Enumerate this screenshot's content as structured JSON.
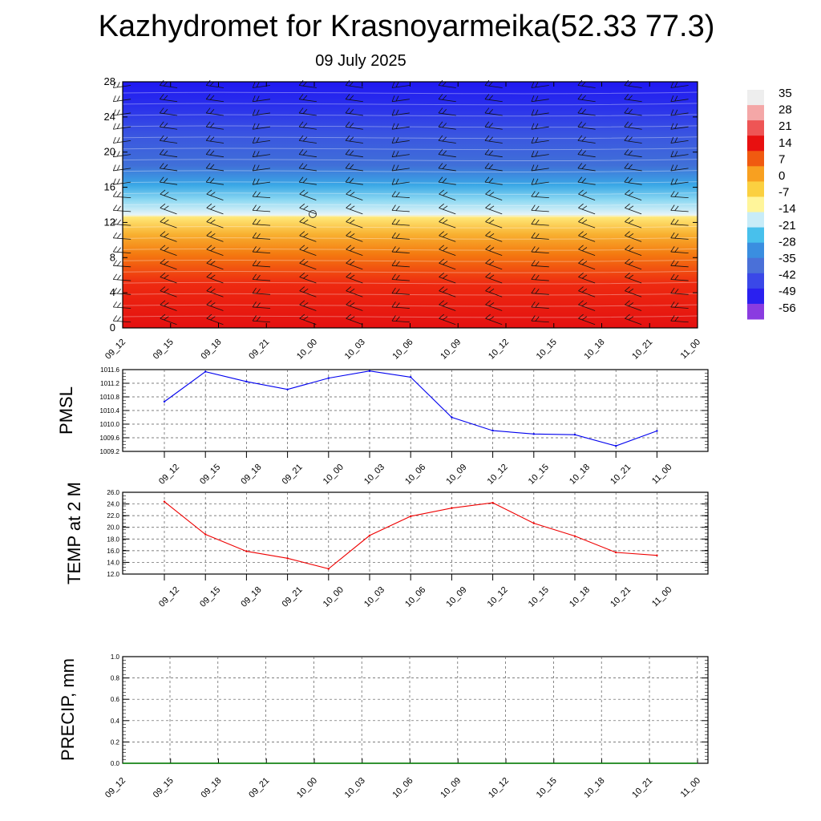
{
  "title": "Kazhydromet for Krasnoyarmeika(52.33 77.3)",
  "subtitle": "09 July 2025",
  "chart_data": [
    {
      "type": "heatmap",
      "name": "vertical-section",
      "x_labels": [
        "09_12",
        "09_15",
        "09_18",
        "09_21",
        "10_00",
        "10_03",
        "10_06",
        "10_09",
        "10_12",
        "10_15",
        "10_18",
        "10_21",
        "11_00"
      ],
      "y_ticks": [
        0,
        4,
        8,
        12,
        16,
        20,
        24,
        28
      ],
      "ylim": [
        0,
        28
      ],
      "colorbar_labels": [
        35,
        28,
        21,
        14,
        7,
        0,
        -7,
        -14,
        -21,
        -28,
        -35,
        -42,
        -49,
        -56
      ],
      "colorbar_colors": [
        "#eeeeee",
        "#f4a7a7",
        "#ee5555",
        "#e81010",
        "#f05a10",
        "#f8a020",
        "#fbd040",
        "#fff59a",
        "#c8ecf8",
        "#48c0ec",
        "#3a8ee0",
        "#4a70d8",
        "#3a48e8",
        "#2a20f0",
        "#8a3ce0"
      ],
      "wind_barbs": "shown",
      "grid": false
    },
    {
      "type": "line",
      "name": "pmsl",
      "ylabel": "PMSL",
      "x": [
        "09_12",
        "09_15",
        "09_18",
        "09_21",
        "10_00",
        "10_03",
        "10_06",
        "10_09",
        "10_12",
        "10_15",
        "10_18",
        "10_21",
        "11_00"
      ],
      "y_ticks": [
        "1011.6",
        "1011.2",
        "1010.8",
        "1010.4",
        "1010.0",
        "1009.6",
        "1009.2"
      ],
      "ylim": [
        1009.2,
        1011.6
      ],
      "color": "#0000ee",
      "series": [
        {
          "values": [
            1010.66,
            1011.54,
            1011.25,
            1011.02,
            1011.35,
            1011.56,
            1011.38,
            1010.2,
            1009.81,
            1009.71,
            1009.69,
            1009.36,
            1009.8
          ]
        }
      ],
      "grid": true
    },
    {
      "type": "line",
      "name": "temp",
      "ylabel": "TEMP at 2 M",
      "x": [
        "09_12",
        "09_15",
        "09_18",
        "09_21",
        "10_00",
        "10_03",
        "10_06",
        "10_09",
        "10_12",
        "10_15",
        "10_18",
        "10_21",
        "11_00"
      ],
      "y_ticks": [
        "26.0",
        "24.0",
        "22.0",
        "20.0",
        "18.0",
        "16.0",
        "14.0",
        "12.0"
      ],
      "ylim": [
        12,
        26
      ],
      "color": "#ee0000",
      "series": [
        {
          "values": [
            24.4,
            18.8,
            15.9,
            14.7,
            12.9,
            18.6,
            21.9,
            23.3,
            24.2,
            20.7,
            18.5,
            15.7,
            15.2
          ]
        }
      ],
      "grid": true
    },
    {
      "type": "line",
      "name": "precip",
      "ylabel": "PRECIP, mm",
      "x": [
        "09_12",
        "09_15",
        "09_18",
        "09_21",
        "10_00",
        "10_03",
        "10_06",
        "10_09",
        "10_12",
        "10_15",
        "10_18",
        "10_21",
        "11_00"
      ],
      "y_ticks": [
        "1.0",
        "0.8",
        "0.6",
        "0.4",
        "0.2",
        "0.0"
      ],
      "ylim": [
        0,
        1
      ],
      "color": "#008000",
      "series": [
        {
          "values": [
            0,
            0,
            0,
            0,
            0,
            0,
            0,
            0,
            0,
            0,
            0,
            0,
            0
          ]
        }
      ],
      "grid": true
    }
  ]
}
